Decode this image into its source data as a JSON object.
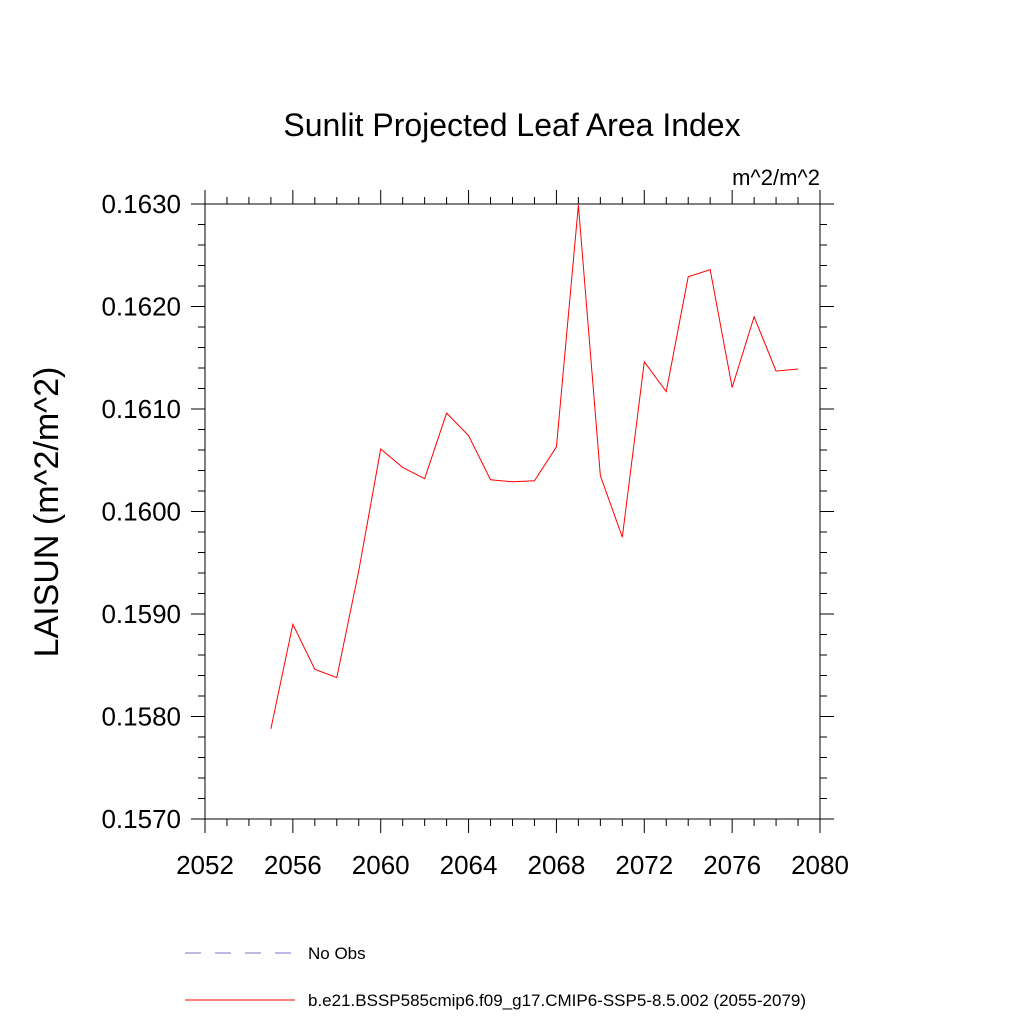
{
  "chart_data": {
    "type": "line",
    "title": "Sunlit Projected Leaf Area Index",
    "units_label": "m^2/m^2",
    "ylabel": "LAISUN  (m^2/m^2)",
    "xlabel": "",
    "xlim": [
      2052,
      2080
    ],
    "ylim": [
      0.157,
      0.163
    ],
    "xticks": [
      "2052",
      "2056",
      "2060",
      "2064",
      "2068",
      "2072",
      "2076",
      "2080"
    ],
    "xtick_values": [
      2052,
      2056,
      2060,
      2064,
      2068,
      2072,
      2076,
      2080
    ],
    "yticks": [
      "0.1570",
      "0.1580",
      "0.1590",
      "0.1600",
      "0.1610",
      "0.1620",
      "0.1630"
    ],
    "ytick_values": [
      0.157,
      0.158,
      0.159,
      0.16,
      0.161,
      0.162,
      0.163
    ],
    "grid": false,
    "legend_position": "bottom",
    "series": [
      {
        "name": "No Obs",
        "color": "#7b70c9",
        "dash": "dashed",
        "x": [],
        "y": []
      },
      {
        "name": "b.e21.BSSP585cmip6.f09_g17.CMIP6-SSP5-8.5.002 (2055-2079)",
        "color": "#ff0000",
        "dash": "solid",
        "x": [
          2055,
          2056,
          2057,
          2058,
          2059,
          2060,
          2061,
          2062,
          2063,
          2064,
          2065,
          2066,
          2067,
          2068,
          2069,
          2070,
          2071,
          2072,
          2073,
          2074,
          2075,
          2076,
          2077,
          2078,
          2079
        ],
        "y": [
          0.15788,
          0.1589,
          0.15846,
          0.15838,
          0.15942,
          0.16061,
          0.16043,
          0.16032,
          0.16096,
          0.16074,
          0.16031,
          0.16029,
          0.1603,
          0.16063,
          0.16299,
          0.16035,
          0.15975,
          0.16146,
          0.16117,
          0.16229,
          0.16236,
          0.16121,
          0.1619,
          0.16137,
          0.16139
        ]
      }
    ]
  }
}
